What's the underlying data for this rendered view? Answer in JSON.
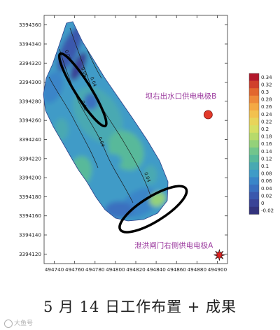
{
  "chart_data": {
    "type": "heatmap",
    "title": "",
    "xlabel": "",
    "ylabel": "",
    "xlim": [
      494730,
      494910
    ],
    "ylim": [
      3394110,
      3394370
    ],
    "x_ticks": [
      494740,
      494760,
      494780,
      494800,
      494820,
      494840,
      494860,
      494880,
      494900
    ],
    "y_ticks": [
      3394360,
      3394340,
      3394320,
      3394300,
      3394280,
      3394260,
      3394240,
      3394220,
      3394200,
      3394180,
      3394160,
      3394140,
      3394120
    ],
    "colorbar": {
      "ticks": [
        0.34,
        0.32,
        0.3,
        0.28,
        0.26,
        0.24,
        0.22,
        0.2,
        0.18,
        0.16,
        0.14,
        0.12,
        0.1,
        0.08,
        0.06,
        0.04,
        0.02,
        0,
        -0.02
      ],
      "colors": [
        "#b2182b",
        "#d0402c",
        "#e2672f",
        "#ee8a3a",
        "#f4a944",
        "#f2c14e",
        "#e8d45a",
        "#d6df64",
        "#b7da6b",
        "#94d17a",
        "#72c58c",
        "#58b99a",
        "#48a9b2",
        "#3f9bc7",
        "#3a85c8",
        "#3a6fbf",
        "#3b58ad",
        "#3a4396",
        "#33337c"
      ]
    },
    "contour_labels": [
      {
        "text": "0.08",
        "x": 494752,
        "y": 3394328
      },
      {
        "text": "0.06",
        "x": 494768,
        "y": 3394310
      },
      {
        "text": "0.04",
        "x": 494777,
        "y": 3394300
      },
      {
        "text": "0.08",
        "x": 494768,
        "y": 3394275
      },
      {
        "text": "0.04",
        "x": 494785,
        "y": 3394237
      },
      {
        "text": "0.04",
        "x": 494830,
        "y": 3394200
      }
    ],
    "annotations": [
      {
        "text": "坝右出水口供电电极B",
        "x": 494891,
        "y": 3394266,
        "marker": "circle"
      },
      {
        "text": "泄洪闸门右侧供电电极A",
        "x": 494902,
        "y": 3394119,
        "marker": "star"
      }
    ],
    "highlights": [
      {
        "cx": 494768,
        "cy": 3394292,
        "rx": 22,
        "ry": 7,
        "angle_deg": 58
      },
      {
        "cx": 494837,
        "cy": 3394167,
        "rx": 20,
        "ry": 11,
        "angle_deg": -32
      }
    ]
  },
  "caption": "5 月 14 日工作布置 + 成果",
  "watermark": "大鱼号",
  "colors": {
    "electrode": "#e23a2a",
    "label_text": "#9b3a9e",
    "star_fill": "#e02020",
    "highlight_ring": "#000000"
  }
}
